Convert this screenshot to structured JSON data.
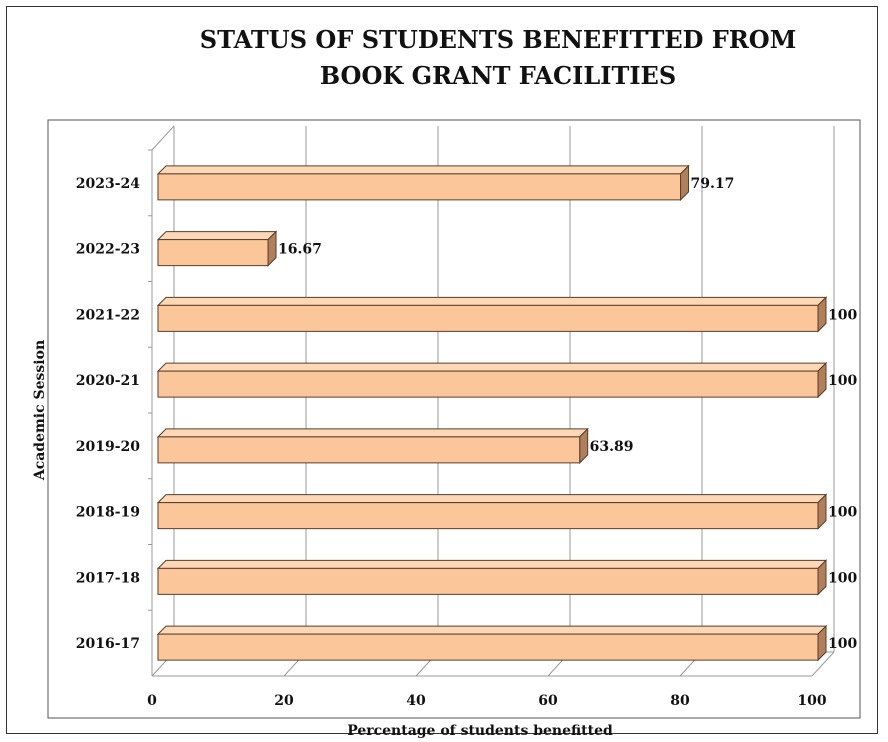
{
  "chart_data": {
    "type": "bar",
    "orientation": "horizontal",
    "title_lines": [
      "STATUS OF STUDENTS BENEFITTED FROM",
      "BOOK GRANT FACILITIES"
    ],
    "xlabel": "Percentage of students benefitted",
    "ylabel": "Academic Session",
    "xlim": [
      0,
      100
    ],
    "x_ticks": [
      "0",
      "20",
      "40",
      "60",
      "80",
      "100"
    ],
    "categories": [
      "2023-24",
      "2022-23",
      "2021-22",
      "2020-21",
      "2019-20",
      "2018-19",
      "2017-18",
      "2016-17"
    ],
    "values": [
      79.17,
      16.67,
      100,
      100,
      63.89,
      100,
      100,
      100
    ],
    "value_labels": [
      "79.17",
      "16.67",
      "100",
      "100",
      "63.89",
      "100",
      "100",
      "100"
    ],
    "grid": true,
    "bar_color": "#fbc79a",
    "bar_side_color": "#b0805c",
    "bar_style": "3d"
  }
}
